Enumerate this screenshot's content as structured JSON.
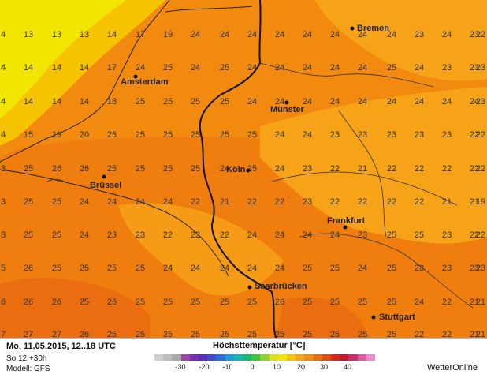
{
  "map": {
    "colors": {
      "yellow": "#f2e600",
      "yellow_orange": "#f5c300",
      "orange_light": "#f6a318",
      "orange": "#f28a10",
      "orange_dark": "#ea6e10"
    },
    "grid_values": [
      [
        "4",
        "13",
        "13",
        "13",
        "14",
        "17",
        "19",
        "24",
        "24",
        "24",
        "24",
        "24",
        "24",
        "24",
        "24",
        "23",
        "24",
        "23",
        "22"
      ],
      [
        "4",
        "14",
        "14",
        "14",
        "17",
        "24",
        "25",
        "24",
        "25",
        "24",
        "24",
        "24",
        "24",
        "24",
        "25",
        "24",
        "23",
        "23",
        "23"
      ],
      [
        "4",
        "14",
        "14",
        "14",
        "18",
        "25",
        "25",
        "25",
        "25",
        "24",
        "24",
        "24",
        "24",
        "24",
        "24",
        "24",
        "24",
        "24",
        "23"
      ],
      [
        "4",
        "15",
        "19",
        "20",
        "25",
        "25",
        "25",
        "25",
        "25",
        "25",
        "24",
        "24",
        "23",
        "23",
        "23",
        "23",
        "23",
        "22",
        "22"
      ],
      [
        "3",
        "25",
        "26",
        "26",
        "25",
        "25",
        "25",
        "25",
        "24",
        "25",
        "24",
        "23",
        "22",
        "21",
        "22",
        "22",
        "22",
        "22",
        "22"
      ],
      [
        "3",
        "25",
        "25",
        "24",
        "24",
        "24",
        "24",
        "22",
        "21",
        "22",
        "22",
        "23",
        "22",
        "22",
        "22",
        "22",
        "21",
        "21",
        "19"
      ],
      [
        "3",
        "25",
        "25",
        "24",
        "23",
        "23",
        "22",
        "22",
        "22",
        "24",
        "24",
        "24",
        "24",
        "23",
        "25",
        "25",
        "23",
        "22",
        "22"
      ],
      [
        "5",
        "26",
        "25",
        "25",
        "25",
        "25",
        "24",
        "24",
        "24",
        "24",
        "24",
        "25",
        "25",
        "24",
        "25",
        "23",
        "23",
        "23",
        "23"
      ],
      [
        "6",
        "26",
        "26",
        "25",
        "26",
        "25",
        "25",
        "25",
        "25",
        "25",
        "26",
        "25",
        "25",
        "25",
        "25",
        "24",
        "22",
        "21",
        "21"
      ],
      [
        "7",
        "27",
        "27",
        "26",
        "25",
        "25",
        "25",
        "25",
        "25",
        "25",
        "25",
        "25",
        "25",
        "25",
        "25",
        "22",
        "22",
        "21",
        "21"
      ]
    ],
    "cities": [
      {
        "name": "Bremen"
      },
      {
        "name": "Amsterdam"
      },
      {
        "name": "Münster"
      },
      {
        "name": "Köln"
      },
      {
        "name": "Brüssel"
      },
      {
        "name": "Frankfurt"
      },
      {
        "name": "Saarbrücken"
      },
      {
        "name": "Stuttgart"
      }
    ]
  },
  "footer": {
    "date": "Mo, 11.05.2015, 12..18 UTC",
    "run": "So 12 +30h",
    "model": "Modell: GFS",
    "legend_title": "Höchsttemperatur [°C]",
    "legend_ticks": [
      "-30",
      "-20",
      "-10",
      "0",
      "10",
      "20",
      "30",
      "40"
    ],
    "legend_colors": [
      "#cfcfcf",
      "#bdbdbd",
      "#a8a8a8",
      "#9a46a8",
      "#7a2fb4",
      "#5a2dc7",
      "#3d4bd6",
      "#2a6ee0",
      "#1b9ad9",
      "#16b7b4",
      "#19b86d",
      "#3cc43a",
      "#8fd22a",
      "#d9e21c",
      "#f2e600",
      "#f5c300",
      "#f6a318",
      "#f28a10",
      "#ea6e10",
      "#e44a10",
      "#d9261a",
      "#c9162d",
      "#d12c6a",
      "#e05aa2",
      "#f08ad0"
    ],
    "brand": "WetterOnline"
  }
}
